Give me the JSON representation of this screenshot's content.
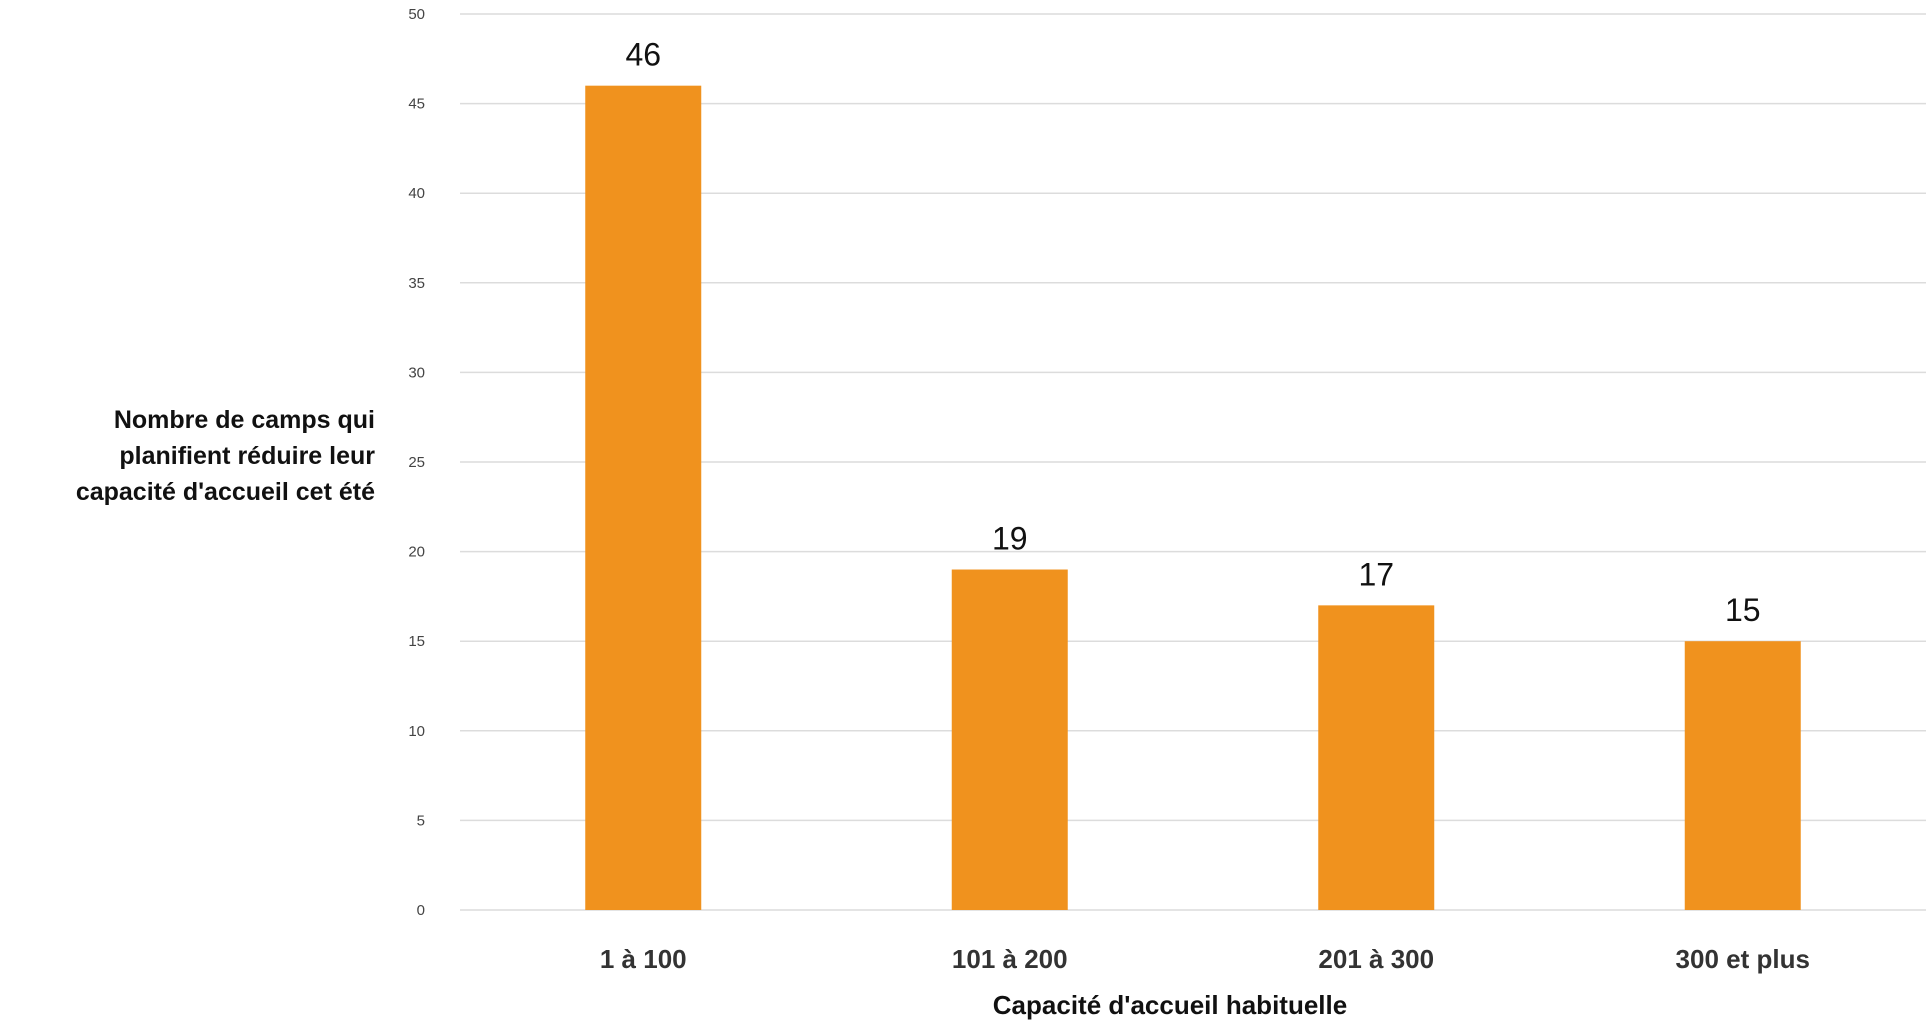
{
  "chart_data": {
    "type": "bar",
    "categories": [
      "1 à 100",
      "101 à 200",
      "201 à 300",
      "300 et plus"
    ],
    "values": [
      46,
      19,
      17,
      15
    ],
    "data_labels": [
      "46",
      "19",
      "17",
      "15"
    ],
    "title": "",
    "xlabel": "Capacité d'accueil habituelle",
    "ylabel_lines": [
      "Nombre de camps qui",
      "planifient réduire leur",
      "capacité d'accueil cet été"
    ],
    "ylim": [
      0,
      50
    ],
    "yticks": [
      0,
      5,
      10,
      15,
      20,
      25,
      30,
      35,
      40,
      45,
      50
    ],
    "grid": true,
    "legend": "none",
    "colors": {
      "bar": "#F0921E",
      "grid": "#DCDCDC",
      "tick_text": "#444444",
      "label_text": "#111111"
    }
  }
}
